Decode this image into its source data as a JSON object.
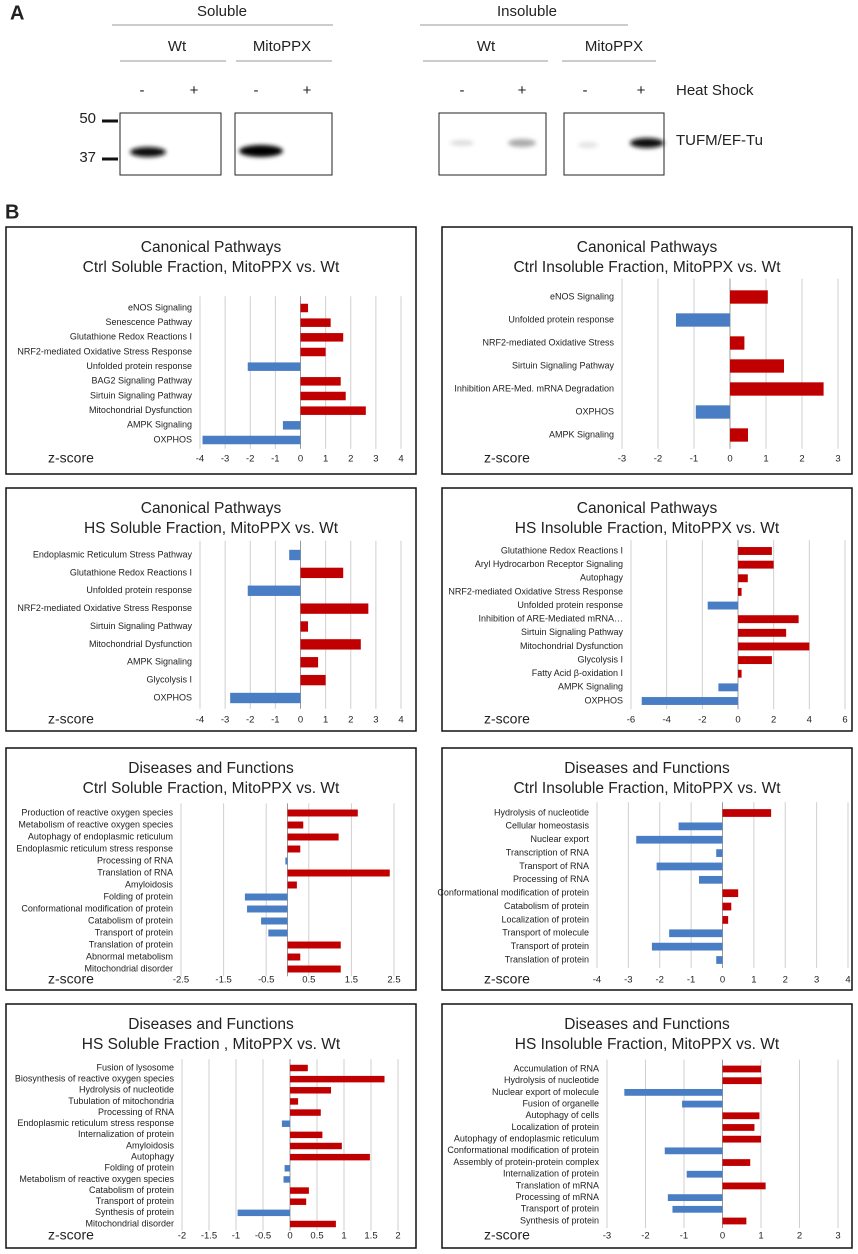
{
  "panel_a": {
    "label": "A",
    "fractions": [
      "Soluble",
      "Insoluble"
    ],
    "genotypes": [
      "Wt",
      "MitoPPX",
      "Wt",
      "MitoPPX"
    ],
    "treatments": [
      "-",
      "+",
      "-",
      "+",
      "-",
      "+",
      "-",
      "+"
    ],
    "treatment_label": "Heat Shock",
    "markers": [
      "50",
      "37"
    ],
    "antibody": "TUFM/EF-Tu"
  },
  "panel_b_label": "B",
  "chart_data": [
    {
      "type": "barh",
      "title": "Canonical Pathways",
      "subtitle": "Ctrl Soluble Fraction, MitoPPX vs. Wt",
      "xlabel": "z-score",
      "categories": [
        "eNOS Signaling",
        "Senescence Pathway",
        "Glutathione Redox Reactions I",
        "NRF2-mediated Oxidative Stress Response",
        "Unfolded protein response",
        "BAG2 Signaling Pathway",
        "Sirtuin Signaling Pathway",
        "Mitochondrial Dysfunction",
        "AMPK Signaling",
        "OXPHOS"
      ],
      "values": [
        0.3,
        1.2,
        1.7,
        1.0,
        -2.1,
        1.6,
        1.8,
        2.6,
        -0.7,
        -3.9
      ],
      "xlim": [
        -4,
        4
      ],
      "xticks": [
        -4,
        -3,
        -2,
        -1,
        0,
        1,
        2,
        3,
        4
      ],
      "grid": true,
      "colors": {
        "positive": "#c00000",
        "negative": "#4a7ec4"
      }
    },
    {
      "type": "barh",
      "title": "Canonical Pathways",
      "subtitle": "Ctrl Insoluble Fraction, MitoPPX vs. Wt",
      "xlabel": "z-score",
      "categories": [
        "eNOS Signaling",
        "Unfolded protein response",
        "NRF2-mediated Oxidative Stress",
        "Sirtuin Signaling Pathway",
        "Inhibition ARE-Med. mRNA Degradation",
        "OXPHOS",
        "AMPK Signaling"
      ],
      "values": [
        1.05,
        -1.5,
        0.4,
        1.5,
        2.6,
        -0.95,
        0.5
      ],
      "xlim": [
        -3,
        3
      ],
      "xticks": [
        -3,
        -2,
        -1,
        0,
        1,
        2,
        3
      ],
      "grid": true,
      "colors": {
        "positive": "#c00000",
        "negative": "#4a7ec4"
      }
    },
    {
      "type": "barh",
      "title": "Canonical Pathways",
      "subtitle": "HS Soluble Fraction, MitoPPX vs. Wt",
      "xlabel": "z-score",
      "categories": [
        "Endoplasmic Reticulum Stress Pathway",
        "Glutathione Redox Reactions I",
        "Unfolded protein response",
        "NRF2-mediated Oxidative Stress Response",
        "Sirtuin Signaling Pathway",
        "Mitochondrial Dysfunction",
        "AMPK Signaling",
        "Glycolysis I",
        "OXPHOS"
      ],
      "values": [
        -0.45,
        1.7,
        -2.1,
        2.7,
        0.3,
        2.4,
        0.7,
        1.0,
        -2.8
      ],
      "xlim": [
        -4,
        4
      ],
      "xticks": [
        -4,
        -3,
        -2,
        -1,
        0,
        1,
        2,
        3,
        4
      ],
      "grid": true,
      "colors": {
        "positive": "#c00000",
        "negative": "#4a7ec4"
      }
    },
    {
      "type": "barh",
      "title": "Canonical Pathways",
      "subtitle": "HS Insoluble Fraction, MitoPPX vs. Wt",
      "xlabel": "z-score",
      "categories": [
        "Glutathione Redox Reactions I",
        "Aryl Hydrocarbon Receptor Signaling",
        "Autophagy",
        "NRF2-mediated Oxidative Stress Response",
        "Unfolded protein response",
        "Inhibition of ARE-Mediated mRNA…",
        "Sirtuin Signaling Pathway",
        "Mitochondrial Dysfunction",
        "Glycolysis I",
        "Fatty Acid β-oxidation I",
        "AMPK Signaling",
        "OXPHOS"
      ],
      "values": [
        1.9,
        2.0,
        0.55,
        0.2,
        -1.7,
        3.4,
        2.7,
        4.0,
        1.9,
        0.2,
        -1.1,
        -5.4
      ],
      "xlim": [
        -6,
        6
      ],
      "xticks": [
        -6,
        -4,
        -2,
        0,
        2,
        4,
        6
      ],
      "grid": true,
      "colors": {
        "positive": "#c00000",
        "negative": "#4a7ec4"
      }
    },
    {
      "type": "barh",
      "title": "Diseases and Functions",
      "subtitle": "Ctrl Soluble Fraction, MitoPPX vs. Wt",
      "xlabel": "z-score",
      "categories": [
        "Production of reactive oxygen species",
        "Metabolism of reactive oxygen species",
        "Autophagy of endoplasmic reticulum",
        "Endoplasmic reticulum stress response",
        "Processing of RNA",
        "Translation of RNA",
        "Amyloidosis",
        "Folding of protein",
        "Conformational modification of protein",
        "Catabolism of protein",
        "Transport of protein",
        "Translation of protein",
        "Abnormal metabolism",
        "Mitochondrial disorder"
      ],
      "values": [
        1.65,
        0.37,
        1.2,
        0.3,
        -0.05,
        2.4,
        0.22,
        -1.0,
        -0.95,
        -0.62,
        -0.45,
        1.25,
        0.3,
        1.25
      ],
      "xlim": [
        -2.5,
        2.5
      ],
      "xticks": [
        -2.5,
        -1.5,
        -0.5,
        0.5,
        1.5,
        2.5
      ],
      "grid": true,
      "colors": {
        "positive": "#c00000",
        "negative": "#4a7ec4"
      }
    },
    {
      "type": "barh",
      "title": "Diseases and Functions",
      "subtitle": "Ctrl Insoluble Fraction, MitoPPX vs. Wt",
      "xlabel": "z-score",
      "categories": [
        "Hydrolysis of nucleotide",
        "Cellular homeostasis",
        "Nuclear export",
        "Transcription of RNA",
        "Transport of RNA",
        "Processing of RNA",
        "Conformational modification of protein",
        "Catabolism of protein",
        "Localization of protein",
        "Transport of molecule",
        "Transport of protein",
        "Translation of protein"
      ],
      "values": [
        1.55,
        -1.4,
        -2.75,
        -0.2,
        -2.1,
        -0.75,
        0.5,
        0.28,
        0.18,
        -1.7,
        -2.25,
        -0.2
      ],
      "xlim": [
        -4,
        4
      ],
      "xticks": [
        -4,
        -3,
        -2,
        -1,
        0,
        1,
        2,
        3,
        4
      ],
      "grid": true,
      "colors": {
        "positive": "#c00000",
        "negative": "#4a7ec4"
      }
    },
    {
      "type": "barh",
      "title": "Diseases and Functions",
      "subtitle": "HS Soluble Fraction , MitoPPX vs. Wt",
      "xlabel": "z-score",
      "categories": [
        "Fusion of lysosome",
        "Biosynthesis of reactive oxygen species",
        "Hydrolysis of nucleotide",
        "Tubulation of mitochondria",
        "Processing of RNA",
        "Endoplasmic reticulum stress response",
        "Internalization of protein",
        "Amyloidosis",
        "Autophagy",
        "Folding of protein",
        "Metabolism of reactive oxygen species",
        "Catabolism of protein",
        "Transport of protein",
        "Synthesis of protein",
        "Mitochondrial disorder"
      ],
      "values": [
        0.33,
        1.75,
        0.76,
        0.15,
        0.57,
        -0.15,
        0.6,
        0.96,
        1.48,
        -0.1,
        -0.12,
        0.35,
        0.3,
        -0.97,
        0.85
      ],
      "xlim": [
        -2,
        2
      ],
      "xticks": [
        -2,
        -1.5,
        -1,
        -0.5,
        0,
        0.5,
        1,
        1.5,
        2
      ],
      "grid": true,
      "colors": {
        "positive": "#c00000",
        "negative": "#4a7ec4"
      }
    },
    {
      "type": "barh",
      "title": "Diseases and Functions",
      "subtitle": "HS Insoluble Fraction, MitoPPX vs. Wt",
      "xlabel": "z-score",
      "categories": [
        "Accumulation of RNA",
        "Hydrolysis of nucleotide",
        "Nuclear export of molecule",
        "Fusion of organelle",
        "Autophagy of cells",
        "Localization of protein",
        "Autophagy of endoplasmic reticulum",
        "Conformational modification of protein",
        "Assembly of protein-protein complex",
        "Internalization of protein",
        "Translation of mRNA",
        "Processing of mRNA",
        "Transport of protein",
        "Synthesis of protein"
      ],
      "values": [
        1.0,
        1.02,
        -2.55,
        -1.05,
        0.96,
        0.83,
        1.0,
        -1.5,
        0.72,
        -0.93,
        1.12,
        -1.42,
        -1.3,
        0.62
      ],
      "xlim": [
        -3,
        3
      ],
      "xticks": [
        -3,
        -2,
        -1,
        0,
        1,
        2,
        3
      ],
      "grid": true,
      "colors": {
        "positive": "#c00000",
        "negative": "#4a7ec4"
      }
    }
  ]
}
